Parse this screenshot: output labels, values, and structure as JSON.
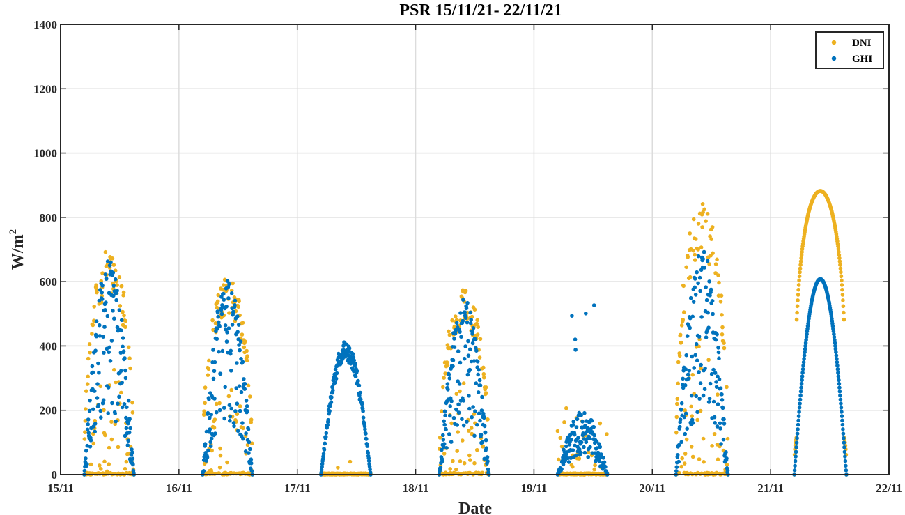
{
  "chart_data": {
    "type": "scatter",
    "title": "PSR 15/11/21- 22/11/21",
    "xlabel": "Date",
    "ylabel": "W/m",
    "ylabel_sup": "2",
    "ylim": [
      0,
      1400
    ],
    "yticks": [
      0,
      200,
      400,
      600,
      800,
      1000,
      1200,
      1400
    ],
    "xticks": [
      "15/11",
      "16/11",
      "17/11",
      "18/11",
      "19/11",
      "20/11",
      "21/11",
      "22/11"
    ],
    "xlim_days": [
      0,
      7
    ],
    "grid": true,
    "legend_position": "upper right",
    "series": [
      {
        "name": "DNI",
        "color": "#EDB120"
      },
      {
        "name": "GHI",
        "color": "#0072BD"
      }
    ],
    "days": [
      {
        "date": "15/11",
        "start": 0.2,
        "end": 0.62,
        "ghi_peak": 670,
        "dni_peak": 700,
        "sky": "partly-cloudy",
        "seed": 11
      },
      {
        "date": "16/11",
        "start": 0.2,
        "end": 0.62,
        "ghi_peak": 615,
        "dni_peak": 620,
        "sky": "partly-cloudy",
        "seed": 23
      },
      {
        "date": "17/11",
        "start": 0.2,
        "end": 0.62,
        "ghi_peak": 415,
        "dni_peak": 70,
        "sky": "overcast-smooth",
        "seed": 37
      },
      {
        "date": "18/11",
        "start": 0.2,
        "end": 0.62,
        "ghi_peak": 550,
        "dni_peak": 575,
        "sky": "partly-cloudy",
        "seed": 41
      },
      {
        "date": "19/11",
        "start": 0.2,
        "end": 0.62,
        "ghi_peak": 555,
        "dni_peak": 215,
        "sky": "cloudy",
        "seed": 53
      },
      {
        "date": "20/11",
        "start": 0.2,
        "end": 0.64,
        "ghi_peak": 700,
        "dni_peak": 850,
        "sky": "partly-cloudy",
        "seed": 67
      },
      {
        "date": "21/11",
        "start": 0.2,
        "end": 0.64,
        "ghi_peak": 608,
        "dni_peak": 882,
        "sky": "clear",
        "seed": 79
      }
    ]
  },
  "legend": {
    "items": [
      {
        "label": "DNI",
        "color": "#EDB120"
      },
      {
        "label": "GHI",
        "color": "#0072BD"
      }
    ]
  }
}
